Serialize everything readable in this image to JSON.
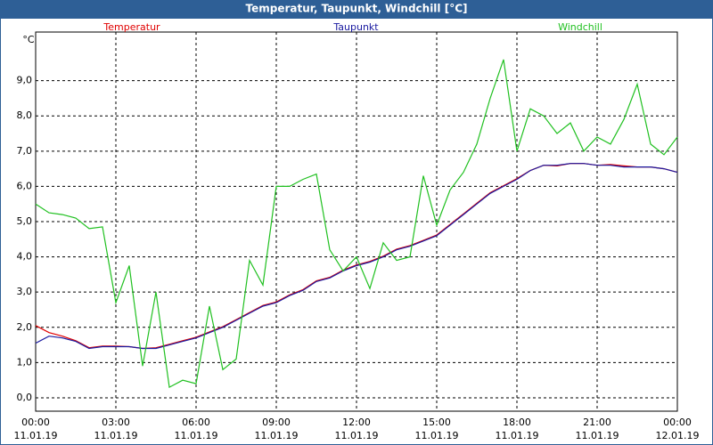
{
  "window_title": "Temperatur, Taupunkt, Windchill [°C]",
  "chart_data": {
    "type": "line",
    "y_label": "°C",
    "x": [
      0,
      0.5,
      1,
      1.5,
      2,
      2.5,
      3,
      3.5,
      4,
      4.5,
      5,
      5.5,
      6,
      6.5,
      7,
      7.5,
      8,
      8.5,
      9,
      9.5,
      10,
      10.5,
      11,
      11.5,
      12,
      12.5,
      13,
      13.5,
      14,
      14.5,
      15,
      15.5,
      16,
      16.5,
      17,
      17.5,
      18,
      18.5,
      19,
      19.5,
      20,
      20.5,
      21,
      21.5,
      22,
      22.5,
      23,
      23.5,
      24
    ],
    "xlim": [
      0,
      24
    ],
    "xticks": [
      {
        "value": 0,
        "label": "00:00",
        "date": "11.01.19"
      },
      {
        "value": 3,
        "label": "03:00",
        "date": "11.01.19"
      },
      {
        "value": 6,
        "label": "06:00",
        "date": "11.01.19"
      },
      {
        "value": 9,
        "label": "09:00",
        "date": "11.01.19"
      },
      {
        "value": 12,
        "label": "12:00",
        "date": "11.01.19"
      },
      {
        "value": 15,
        "label": "15:00",
        "date": "11.01.19"
      },
      {
        "value": 18,
        "label": "18:00",
        "date": "11.01.19"
      },
      {
        "value": 21,
        "label": "21:00",
        "date": "11.01.19"
      },
      {
        "value": 24,
        "label": "00:00",
        "date": "12.01.19"
      }
    ],
    "ylim": [
      -0.38,
      10.38
    ],
    "yticks": [
      {
        "value": 0,
        "label": "0,0"
      },
      {
        "value": 1,
        "label": "1,0"
      },
      {
        "value": 2,
        "label": "2,0"
      },
      {
        "value": 3,
        "label": "3,0"
      },
      {
        "value": 4,
        "label": "4,0"
      },
      {
        "value": 5,
        "label": "5,0"
      },
      {
        "value": 6,
        "label": "6,0"
      },
      {
        "value": 7,
        "label": "7,0"
      },
      {
        "value": 8,
        "label": "8,0"
      },
      {
        "value": 9,
        "label": "9,0"
      }
    ],
    "grid": true,
    "legend": "top",
    "series": [
      {
        "name": "Temperatur",
        "color": "#e00000",
        "values": [
          2.05,
          1.85,
          1.75,
          1.62,
          1.42,
          1.47,
          1.47,
          1.45,
          1.4,
          1.42,
          1.52,
          1.62,
          1.72,
          1.87,
          2.02,
          2.22,
          2.42,
          2.62,
          2.72,
          2.92,
          3.07,
          3.32,
          3.42,
          3.62,
          3.77,
          3.87,
          4.02,
          4.22,
          4.32,
          4.47,
          4.62,
          4.92,
          5.22,
          5.52,
          5.82,
          6.02,
          6.22,
          6.45,
          6.6,
          6.58,
          6.65,
          6.65,
          6.6,
          6.62,
          6.58,
          6.55,
          6.55,
          6.5,
          6.4
        ]
      },
      {
        "name": "Taupunkt",
        "color": "#1a1aa0",
        "values": [
          1.55,
          1.75,
          1.7,
          1.6,
          1.4,
          1.45,
          1.45,
          1.45,
          1.4,
          1.4,
          1.5,
          1.6,
          1.7,
          1.85,
          2.0,
          2.2,
          2.4,
          2.6,
          2.7,
          2.9,
          3.05,
          3.3,
          3.4,
          3.6,
          3.75,
          3.85,
          4.0,
          4.2,
          4.3,
          4.45,
          4.6,
          4.9,
          5.2,
          5.5,
          5.8,
          6.0,
          6.2,
          6.45,
          6.6,
          6.6,
          6.65,
          6.65,
          6.6,
          6.6,
          6.55,
          6.55,
          6.55,
          6.5,
          6.4
        ]
      },
      {
        "name": "Windchill",
        "color": "#20c020",
        "values": [
          5.5,
          5.25,
          5.2,
          5.1,
          4.8,
          4.85,
          2.7,
          3.75,
          0.9,
          3.0,
          0.3,
          0.5,
          0.4,
          2.6,
          0.8,
          1.1,
          3.9,
          3.2,
          6.0,
          6.0,
          6.2,
          6.35,
          4.2,
          3.6,
          4.0,
          3.1,
          4.4,
          3.9,
          4.0,
          6.3,
          4.9,
          5.9,
          6.4,
          7.2,
          8.5,
          9.6,
          7.0,
          8.2,
          8.0,
          7.5,
          7.8,
          7.0,
          7.4,
          7.2,
          7.9,
          8.9,
          7.2,
          6.9,
          7.4
        ]
      }
    ]
  }
}
